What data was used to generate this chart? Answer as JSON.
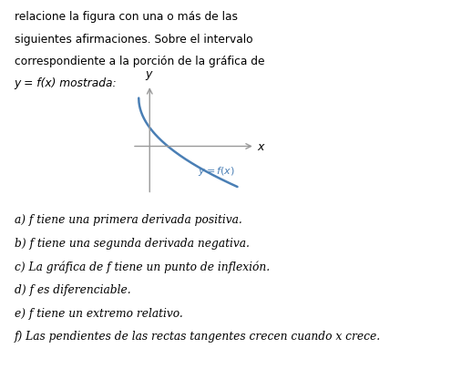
{
  "curve_color": "#4a7fb5",
  "curve_label": "y = f(x)",
  "axis_color": "#999999",
  "text_color": "#000000",
  "background_color": "#ffffff",
  "header_lines": [
    "relacione la figura con una o más de las",
    "siguientes afirmaciones. Sobre el intervalo",
    "correspondiente a la porción de la gráfica de",
    "y = f(x) mostrada:"
  ],
  "items": [
    "a) f tiene una primera derivada positiva.",
    "b) f tiene una segunda derivada negativa.",
    "c) La gráfica de f tiene un punto de inflexión.",
    "d) f es diferenciable.",
    "e) f tiene un extremo relativo.",
    "f) Las pendientes de las rectas tangentes crecen cuando x crece."
  ],
  "fig_width": 5.18,
  "fig_height": 4.06,
  "dpi": 100
}
